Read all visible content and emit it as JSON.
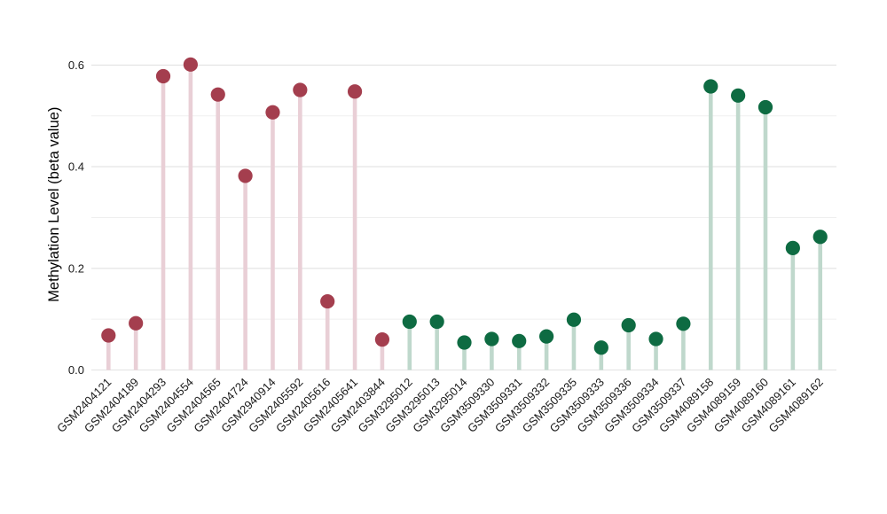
{
  "chart_data": {
    "type": "scatter",
    "variant": "lollipop-stem",
    "title": "",
    "xlabel": "",
    "ylabel": "Methylation Level (beta value)",
    "ylim": [
      0,
      0.65
    ],
    "yticks": [
      0,
      0.2,
      0.4,
      0.6
    ],
    "ytick_labels": [
      "0.0",
      "0.2",
      "0.4",
      "0.6"
    ],
    "yticks_minor": [
      0.1,
      0.3,
      0.5
    ],
    "grid": "horizontal-light-gray",
    "legend": "none",
    "categories": [
      "GSM2404121",
      "GSM2404189",
      "GSM2404293",
      "GSM2404554",
      "GSM2404565",
      "GSM2404724",
      "GSM2940914",
      "GSM2405592",
      "GSM2405616",
      "GSM2405641",
      "GSM2403844",
      "GSM3295012",
      "GSM3295013",
      "GSM3295014",
      "GSM3509330",
      "GSM3509331",
      "GSM3509332",
      "GSM3509335",
      "GSM3509333",
      "GSM3509336",
      "GSM3509334",
      "GSM3509337",
      "GSM4089158",
      "GSM4089159",
      "GSM4089160",
      "GSM4089161",
      "GSM4089162"
    ],
    "values": [
      0.068,
      0.092,
      0.578,
      0.601,
      0.542,
      0.382,
      0.507,
      0.551,
      0.135,
      0.548,
      0.06,
      0.095,
      0.095,
      0.054,
      0.061,
      0.057,
      0.066,
      0.099,
      0.044,
      0.088,
      0.061,
      0.091,
      0.558,
      0.54,
      0.517,
      0.24,
      0.262
    ],
    "point_groups": [
      "maroon",
      "maroon",
      "maroon",
      "maroon",
      "maroon",
      "maroon",
      "maroon",
      "maroon",
      "maroon",
      "maroon",
      "maroon",
      "green",
      "green",
      "green",
      "green",
      "green",
      "green",
      "green",
      "green",
      "green",
      "green",
      "green",
      "green",
      "green",
      "green",
      "green",
      "green"
    ],
    "group_styles": {
      "maroon": {
        "dot_color": "#A43E4E",
        "stem_color": "#E9CFD6"
      },
      "green": {
        "dot_color": "#0E6B42",
        "stem_color": "#BFD8CC"
      }
    },
    "colors": {
      "background": "#FFFFFF",
      "gridline_major": "#E2E2E2",
      "gridline_minor": "#EFEFEF",
      "tick_text": "#1A1A1A",
      "axis_title_text": "#000000"
    }
  }
}
